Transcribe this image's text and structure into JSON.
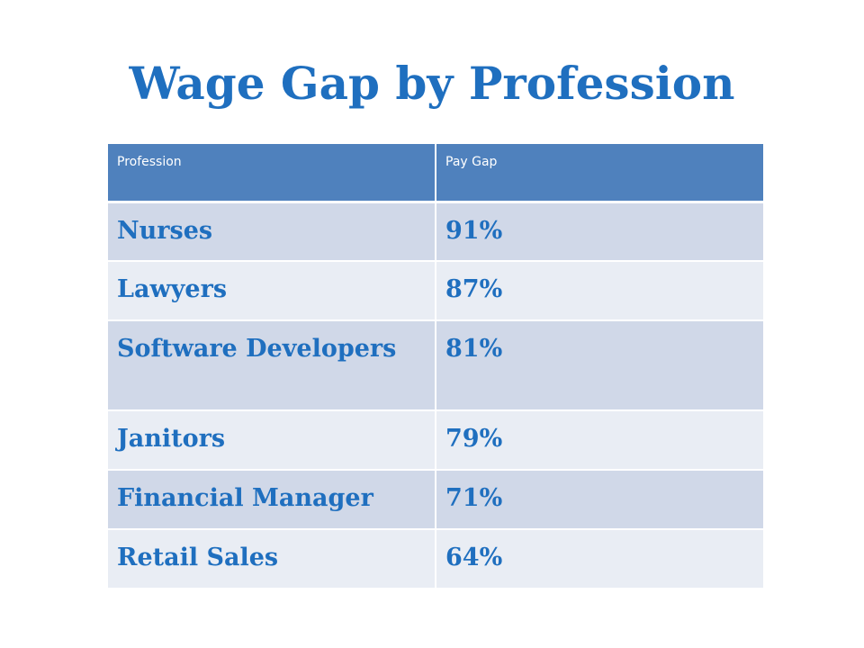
{
  "slide": {
    "title": "Wage Gap by Profession"
  },
  "table": {
    "headers": {
      "profession": "Profession",
      "pay_gap": "Pay Gap"
    },
    "rows": [
      {
        "profession": "Nurses",
        "pay_gap": "91%"
      },
      {
        "profession": "Lawyers",
        "pay_gap": "87%"
      },
      {
        "profession": "Software Developers",
        "pay_gap": "81%"
      },
      {
        "profession": "Janitors",
        "pay_gap": "79%"
      },
      {
        "profession": "Financial Manager",
        "pay_gap": "71%"
      },
      {
        "profession": "Retail Sales",
        "pay_gap": "64%"
      }
    ]
  },
  "colors": {
    "title": "#1f6fbf",
    "header_bg": "#4f81bd",
    "row_band_dark": "#d0d8e8",
    "row_band_light": "#e9edf4"
  }
}
